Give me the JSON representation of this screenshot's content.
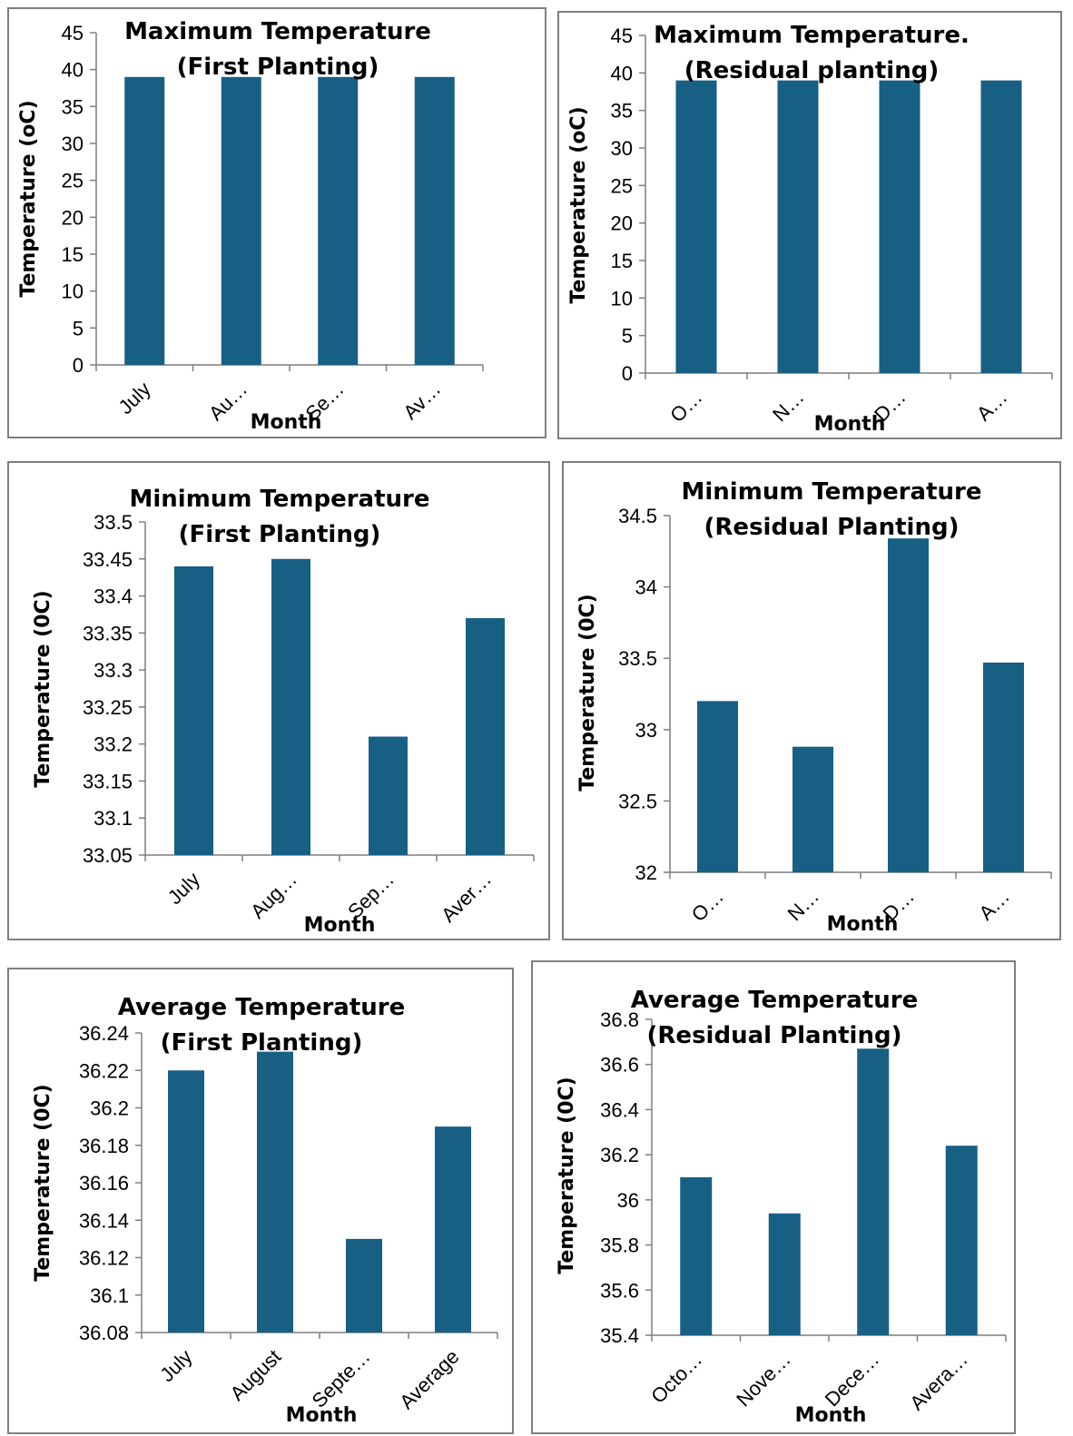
{
  "colors": {
    "bar": "#185f84",
    "axis": "#7f7f7f",
    "border": "#7f7f7f"
  },
  "chart_data": [
    {
      "type": "bar",
      "title": [
        "Maximum Temperature",
        "(First Planting)"
      ],
      "xlabel": "Month",
      "ylabel": "Temperature (oC)",
      "categories": [
        "July",
        "Au…",
        "Se…",
        "Av…"
      ],
      "values": [
        39,
        39,
        39,
        39
      ],
      "ylim": [
        0,
        45
      ],
      "yticks": [
        "0",
        "5",
        "10",
        "15",
        "20",
        "25",
        "30",
        "35",
        "40",
        "45"
      ],
      "grid": false,
      "legend": "none"
    },
    {
      "type": "bar",
      "title": [
        "Maximum Temperature.",
        "(Residual planting)"
      ],
      "xlabel": "Month",
      "ylabel": "Temperature (oC)",
      "categories": [
        "O…",
        "N…",
        "D…",
        "A…"
      ],
      "values": [
        39,
        39,
        39,
        39
      ],
      "ylim": [
        0,
        45
      ],
      "yticks": [
        "0",
        "5",
        "10",
        "15",
        "20",
        "25",
        "30",
        "35",
        "40",
        "45"
      ],
      "grid": false,
      "legend": "none"
    },
    {
      "type": "bar",
      "title": [
        "Minimum Temperature",
        "(First Planting)"
      ],
      "xlabel": "Month",
      "ylabel": "Temperature (0C)",
      "categories": [
        "July",
        "Aug…",
        "Sep…",
        "Aver…"
      ],
      "values": [
        33.44,
        33.45,
        33.21,
        33.37
      ],
      "ylim": [
        33.05,
        33.5
      ],
      "yticks": [
        "33.05",
        "33.1",
        "33.15",
        "33.2",
        "33.25",
        "33.3",
        "33.35",
        "33.4",
        "33.45",
        "33.5"
      ],
      "grid": false,
      "legend": "none"
    },
    {
      "type": "bar",
      "title": [
        "Minimum Temperature",
        "(Residual Planting)"
      ],
      "xlabel": "Month",
      "ylabel": "Temperature (0C)",
      "categories": [
        "O…",
        "N…",
        "D…",
        "A…"
      ],
      "values": [
        33.2,
        32.88,
        34.34,
        33.47
      ],
      "ylim": [
        32,
        34.5
      ],
      "yticks": [
        "32",
        "32.5",
        "33",
        "33.5",
        "34",
        "34.5"
      ],
      "grid": false,
      "legend": "none"
    },
    {
      "type": "bar",
      "title": [
        "Average Temperature",
        "(First Planting)"
      ],
      "xlabel": "Month",
      "ylabel": "Temperature (0C)",
      "categories": [
        "July",
        "August",
        "Septe…",
        "Average"
      ],
      "values": [
        36.22,
        36.23,
        36.13,
        36.19
      ],
      "ylim": [
        36.08,
        36.24
      ],
      "yticks": [
        "36.08",
        "36.1",
        "36.12",
        "36.14",
        "36.16",
        "36.18",
        "36.2",
        "36.22",
        "36.24"
      ],
      "grid": false,
      "legend": "none"
    },
    {
      "type": "bar",
      "title": [
        "Average Temperature",
        "(Residual Planting)"
      ],
      "xlabel": "Month",
      "ylabel": "Temperature (0C)",
      "categories": [
        "Octo…",
        "Nove…",
        "Dece…",
        "Avera…"
      ],
      "values": [
        36.1,
        35.94,
        36.67,
        36.24
      ],
      "ylim": [
        35.4,
        36.8
      ],
      "yticks": [
        "35.4",
        "35.6",
        "35.8",
        "36",
        "36.2",
        "36.4",
        "36.6",
        "36.8"
      ],
      "grid": false,
      "legend": "none"
    }
  ]
}
